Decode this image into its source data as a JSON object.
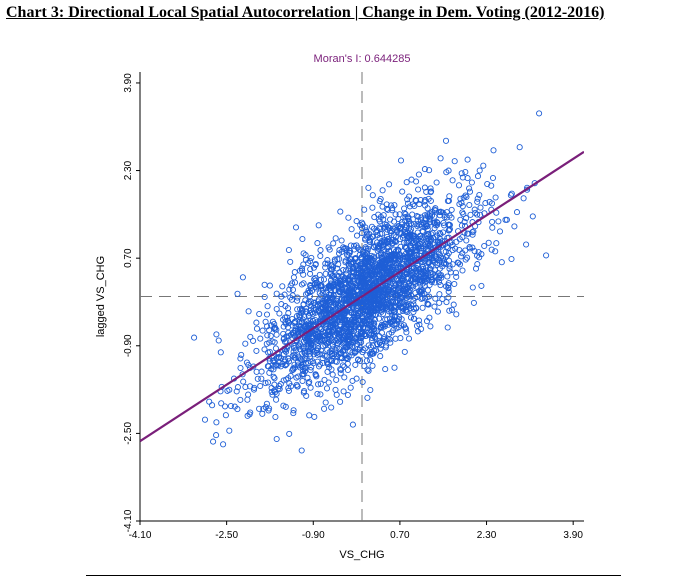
{
  "page": {
    "title": "Chart 3: Directional Local Spatial Autocorrelation | Change in Dem. Voting (2012-2016)"
  },
  "chart_data": {
    "type": "scatter",
    "title": "Chart 3: Directional Local Spatial Autocorrelation | Change in Dem. Voting (2012-2016)",
    "subtitle": "Moran's I: 0.644285",
    "moran_i": 0.644285,
    "xlabel": "VS_CHG",
    "ylabel": "lagged VS_CHG",
    "xlim": [
      -4.1,
      4.1
    ],
    "ylim": [
      -4.1,
      4.1
    ],
    "xticks": [
      "-4.10",
      "-2.50",
      "-0.90",
      "0.70",
      "2.30",
      "3.90"
    ],
    "yticks": [
      "-4.10",
      "-2.50",
      "-0.90",
      "0.70",
      "2.30",
      "3.90"
    ],
    "reference_lines": {
      "x": 0.0,
      "y": 0.0,
      "style": "dashed"
    },
    "regression": {
      "slope": 0.644285,
      "intercept": 0.0,
      "color": "#7a1f7a"
    },
    "point_color": "#1f5fd6",
    "line_color": "#7a1f7a",
    "points": [
      {
        "x": -3.1,
        "y": -0.75
      },
      {
        "x": -2.9,
        "y": -2.25
      },
      {
        "x": -2.75,
        "y": -2.65
      },
      {
        "x": -2.6,
        "y": -1.95
      },
      {
        "x": -2.45,
        "y": -2.45
      },
      {
        "x": -2.3,
        "y": 0.05
      },
      {
        "x": -2.2,
        "y": 0.35
      },
      {
        "x": -1.9,
        "y": -2.05
      },
      {
        "x": -1.6,
        "y": -2.2
      },
      {
        "x": -1.35,
        "y": 0.85
      },
      {
        "x": -1.1,
        "y": 1.05
      },
      {
        "x": -0.8,
        "y": 1.3
      },
      {
        "x": -0.4,
        "y": 1.55
      },
      {
        "x": 0.2,
        "y": 1.85
      },
      {
        "x": 0.5,
        "y": 2.05
      },
      {
        "x": 1.0,
        "y": 2.1
      },
      {
        "x": 1.6,
        "y": 2.3
      },
      {
        "x": 1.95,
        "y": 2.5
      },
      {
        "x": 2.4,
        "y": 1.7
      },
      {
        "x": 2.65,
        "y": 1.4
      },
      {
        "x": 2.75,
        "y": 1.85
      },
      {
        "x": 3.05,
        "y": 1.95
      },
      {
        "x": 3.4,
        "y": 0.75
      },
      {
        "x": 0.1,
        "y": -1.85
      },
      {
        "x": 0.6,
        "y": -1.3
      },
      {
        "x": 1.2,
        "y": -0.45
      },
      {
        "x": -0.1,
        "y": -1.5
      },
      {
        "x": -0.7,
        "y": -2.05
      },
      {
        "x": -1.5,
        "y": -1.6
      },
      {
        "x": -2.1,
        "y": -1.25
      }
    ]
  }
}
